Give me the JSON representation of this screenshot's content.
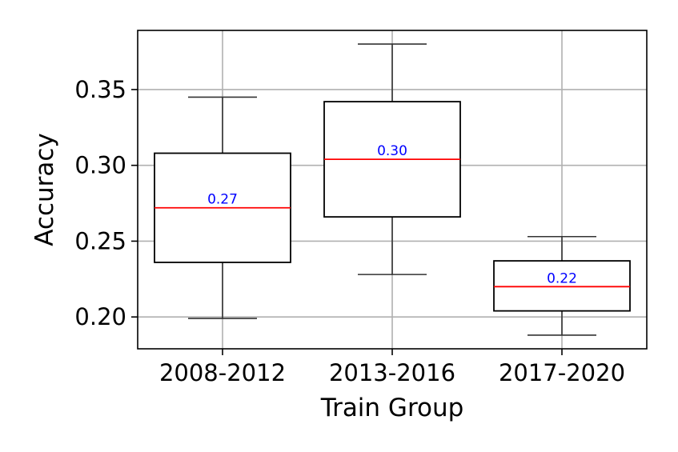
{
  "chart_data": {
    "type": "box",
    "title": "",
    "xlabel": "Train Group",
    "ylabel": "Accuracy",
    "categories": [
      "2008-2012",
      "2013-2016",
      "2017-2020"
    ],
    "boxes": [
      {
        "category": "2008-2012",
        "whisker_low": 0.199,
        "q1": 0.236,
        "median": 0.272,
        "q3": 0.308,
        "whisker_high": 0.345,
        "median_label": "0.27"
      },
      {
        "category": "2013-2016",
        "whisker_low": 0.228,
        "q1": 0.266,
        "median": 0.304,
        "q3": 0.342,
        "whisker_high": 0.38,
        "median_label": "0.30"
      },
      {
        "category": "2017-2020",
        "whisker_low": 0.188,
        "q1": 0.204,
        "median": 0.22,
        "q3": 0.237,
        "whisker_high": 0.253,
        "median_label": "0.22"
      }
    ],
    "yticks": [
      0.2,
      0.25,
      0.3,
      0.35
    ],
    "ytick_labels": [
      "0.20",
      "0.25",
      "0.30",
      "0.35"
    ],
    "ylim": [
      0.179,
      0.389
    ],
    "grid": true,
    "colors": {
      "box": "#000000",
      "whisker": "#333333",
      "median": "#ff0000",
      "median_label": "#0000ff",
      "grid": "#b0b0b0"
    }
  }
}
